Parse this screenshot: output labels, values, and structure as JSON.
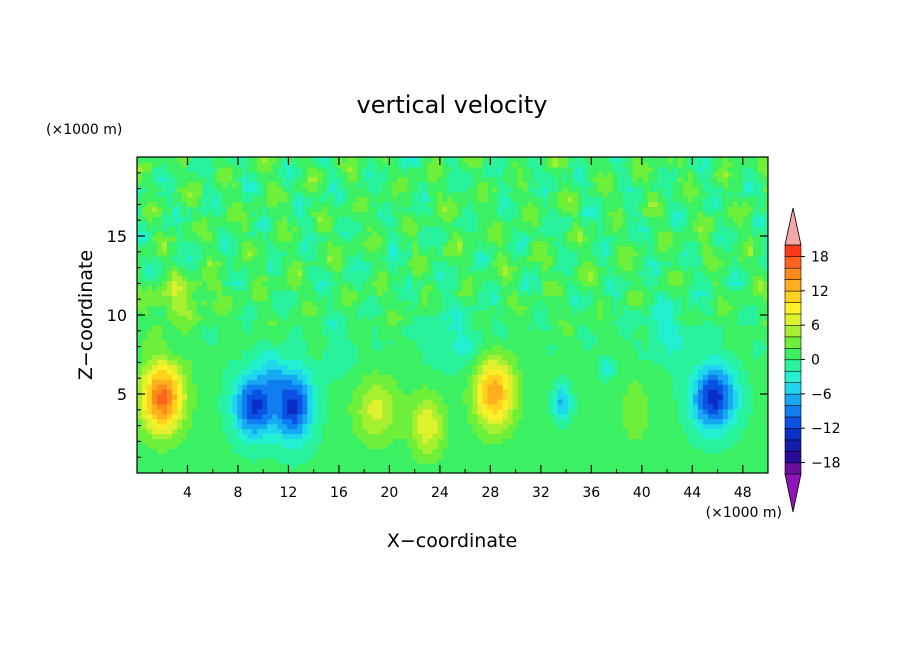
{
  "chart_data": {
    "type": "heatmap",
    "title": "vertical velocity",
    "xlabel": "X−coordinate",
    "ylabel": "Z−coordinate",
    "x_unit": "(×1000 m)",
    "z_unit": "(×1000 m)",
    "xlim": [
      0,
      50
    ],
    "ylim": [
      0,
      20
    ],
    "x_ticks": [
      4,
      8,
      12,
      16,
      20,
      24,
      28,
      32,
      36,
      40,
      44,
      48
    ],
    "x_tick_labels": [
      "4",
      "8",
      "12",
      "16",
      "20",
      "24",
      "28",
      "32",
      "36",
      "40",
      "44",
      "48"
    ],
    "y_ticks": [
      5,
      10,
      15
    ],
    "y_tick_labels": [
      "5",
      "10",
      "15"
    ],
    "colorbar": {
      "levels": [
        -20,
        -18,
        -16,
        -14,
        -12,
        -10,
        -8,
        -6,
        -4,
        -2,
        0,
        2,
        4,
        6,
        8,
        10,
        12,
        14,
        16,
        18,
        20
      ],
      "tick_values": [
        18,
        12,
        6,
        0,
        -6,
        -12,
        -18
      ],
      "tick_labels": [
        "18",
        "12",
        "6",
        "0",
        "−6",
        "−12",
        "−18"
      ],
      "colors": [
        "#6a0ea0",
        "#2a0a9a",
        "#121ea8",
        "#0a2fc8",
        "#0a52e4",
        "#0f7ef0",
        "#17aaf2",
        "#1fd6ee",
        "#22f0d0",
        "#28f29c",
        "#3cf064",
        "#6ef03a",
        "#a6f032",
        "#dff02c",
        "#fff028",
        "#ffd21e",
        "#ffae1e",
        "#ff8a1c",
        "#ff641c",
        "#ff3a1a"
      ],
      "under_color": "#8f14b8",
      "over_color": "#f4a8a8"
    },
    "features": [
      {
        "x": 2.0,
        "z": 4.8,
        "sx": 1.7,
        "sz": 2.2,
        "amp": 16
      },
      {
        "x": 9.3,
        "z": 4.3,
        "sx": 1.6,
        "sz": 2.0,
        "amp": -13
      },
      {
        "x": 12.4,
        "z": 4.3,
        "sx": 1.5,
        "sz": 2.2,
        "amp": -13
      },
      {
        "x": 10.8,
        "z": 6.5,
        "sx": 1.0,
        "sz": 1.3,
        "amp": -4
      },
      {
        "x": 19.0,
        "z": 4.0,
        "sx": 1.8,
        "sz": 2.0,
        "amp": 6
      },
      {
        "x": 23.0,
        "z": 3.0,
        "sx": 1.3,
        "sz": 2.0,
        "amp": 7
      },
      {
        "x": 28.3,
        "z": 5.1,
        "sx": 1.6,
        "sz": 2.2,
        "amp": 13
      },
      {
        "x": 33.7,
        "z": 4.5,
        "sx": 0.7,
        "sz": 1.1,
        "amp": -7
      },
      {
        "x": 37.3,
        "z": 6.7,
        "sx": 0.6,
        "sz": 0.7,
        "amp": -4
      },
      {
        "x": 39.5,
        "z": 4.0,
        "sx": 1.1,
        "sz": 2.2,
        "amp": 3
      },
      {
        "x": 45.7,
        "z": 4.8,
        "sx": 1.7,
        "sz": 2.0,
        "amp": -14
      },
      {
        "x": 25.5,
        "z": 8.5,
        "sx": 2.5,
        "sz": 2.0,
        "amp": -3
      },
      {
        "x": 16.0,
        "z": 8.0,
        "sx": 1.5,
        "sz": 2.0,
        "amp": -2
      },
      {
        "x": 3.5,
        "z": 11.0,
        "sx": 2.5,
        "sz": 1.5,
        "amp": 4
      },
      {
        "x": 42.0,
        "z": 9.0,
        "sx": 2.0,
        "sz": 2.0,
        "amp": -3
      }
    ]
  }
}
